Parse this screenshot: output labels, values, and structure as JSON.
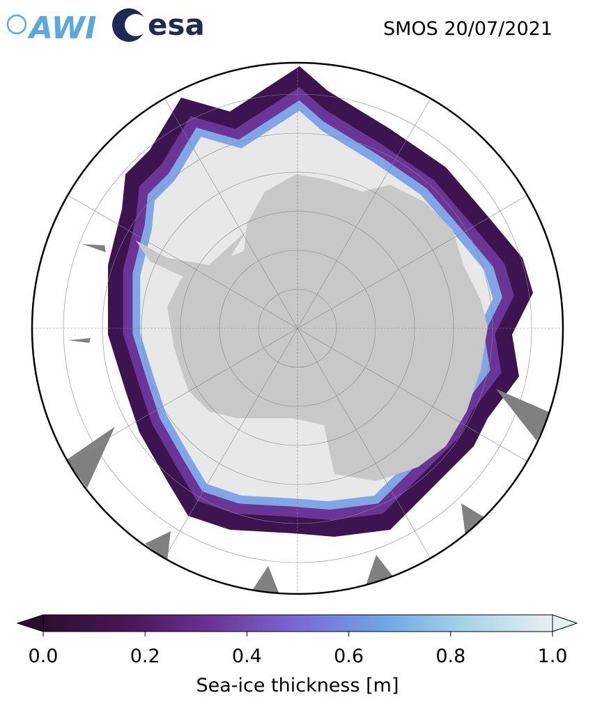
{
  "logos": {
    "awi": "AWI",
    "esa": "esa"
  },
  "title": "SMOS 20/07/2021",
  "colorbar": {
    "label": "Sea-ice thickness [m]",
    "lim": [
      0,
      1
    ],
    "ticks": [
      {
        "value": 0,
        "label": "0.0"
      },
      {
        "value": 0.2,
        "label": "0.2"
      },
      {
        "value": 0.4,
        "label": "0.4"
      },
      {
        "value": 0.6,
        "label": "0.6"
      },
      {
        "value": 0.8,
        "label": "0.8"
      },
      {
        "value": 1,
        "label": "1.0"
      }
    ],
    "colors": [
      "#2b0f2e",
      "#4a1657",
      "#6a3596",
      "#7a6ad6",
      "#6ea6e6",
      "#a8d5e8",
      "#e6f0f0"
    ]
  }
}
